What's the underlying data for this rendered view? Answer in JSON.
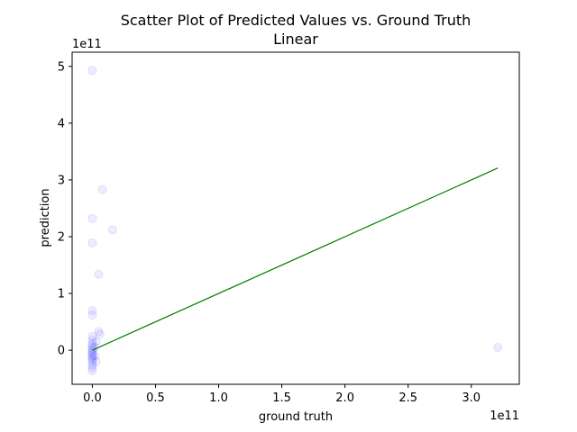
{
  "chart_data": {
    "type": "scatter",
    "title": "Scatter Plot of Predicted Values vs. Ground Truth",
    "subtitle": "Linear",
    "xlabel": "ground truth",
    "ylabel": "prediction",
    "x_offset_label": "1e11",
    "y_offset_label": "1e11",
    "xlim": [
      -0.16,
      3.38
    ],
    "ylim": [
      -0.6,
      5.25
    ],
    "x_ticks": [
      0.0,
      0.5,
      1.0,
      1.5,
      2.0,
      2.5,
      3.0
    ],
    "x_tick_labels": [
      "0.0",
      "0.5",
      "1.0",
      "1.5",
      "2.0",
      "2.5",
      "3.0"
    ],
    "y_ticks": [
      0,
      1,
      2,
      3,
      4,
      5
    ],
    "y_tick_labels": [
      "0",
      "1",
      "2",
      "3",
      "4",
      "5"
    ],
    "grid": false,
    "colors": {
      "points": "#0000ff",
      "reference_line": "#008000"
    },
    "series": [
      {
        "values": [
          {
            "x": 0.0,
            "y": 4.93
          },
          {
            "x": 0.0,
            "y": 2.32
          },
          {
            "x": 0.0,
            "y": 1.89
          },
          {
            "x": 0.0,
            "y": 0.7
          },
          {
            "x": 0.0,
            "y": 0.62
          },
          {
            "x": 0.0,
            "y": 0.24
          },
          {
            "x": 0.0,
            "y": 0.18
          },
          {
            "x": 0.0,
            "y": 0.12
          },
          {
            "x": 0.0,
            "y": 0.08
          },
          {
            "x": 0.0,
            "y": 0.04
          },
          {
            "x": 0.0,
            "y": 0.01
          },
          {
            "x": 0.0,
            "y": -0.02
          },
          {
            "x": 0.0,
            "y": -0.05
          },
          {
            "x": 0.0,
            "y": -0.08
          },
          {
            "x": 0.0,
            "y": -0.11
          },
          {
            "x": 0.0,
            "y": -0.14
          },
          {
            "x": 0.0,
            "y": -0.17
          },
          {
            "x": 0.0,
            "y": -0.21
          },
          {
            "x": 0.0,
            "y": -0.26
          },
          {
            "x": 0.0,
            "y": -0.31
          },
          {
            "x": 0.0,
            "y": -0.36
          },
          {
            "x": 0.02,
            "y": 0.05
          },
          {
            "x": 0.02,
            "y": -0.1
          },
          {
            "x": 0.03,
            "y": 0.15
          },
          {
            "x": 0.03,
            "y": -0.2
          },
          {
            "x": 0.05,
            "y": 1.34
          },
          {
            "x": 0.05,
            "y": 0.33
          },
          {
            "x": 0.06,
            "y": 0.28
          },
          {
            "x": 0.08,
            "y": 2.83
          },
          {
            "x": 0.16,
            "y": 2.12
          },
          {
            "x": 3.21,
            "y": 0.05
          }
        ]
      }
    ],
    "reference_line": [
      [
        0.0,
        0.0
      ],
      [
        3.21,
        3.21
      ]
    ]
  }
}
